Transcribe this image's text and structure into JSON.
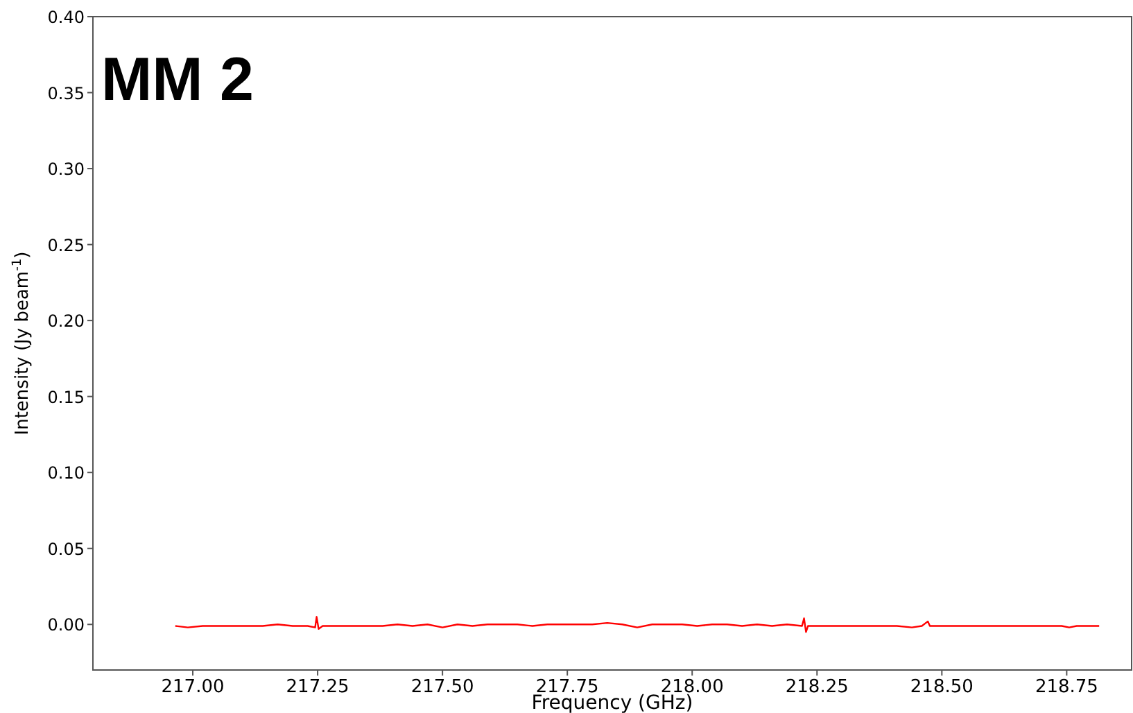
{
  "chart_data": {
    "type": "line",
    "title": "MM 2",
    "xlabel": "Frequency (GHz)",
    "ylabel": "Intensity (Jy beam$^{-1}$)",
    "xlim": [
      216.8,
      218.88
    ],
    "ylim": [
      -0.03,
      0.4
    ],
    "xticks": [
      {
        "value": 217,
        "label": "217.00"
      },
      {
        "value": 217.25,
        "label": "217.25"
      },
      {
        "value": 217.5,
        "label": "217.50"
      },
      {
        "value": 217.75,
        "label": "217.75"
      },
      {
        "value": 218,
        "label": "218.00"
      },
      {
        "value": 218.25,
        "label": "218.25"
      },
      {
        "value": 218.5,
        "label": "218.50"
      },
      {
        "value": 218.75,
        "label": "218.75"
      }
    ],
    "yticks": [
      {
        "value": 0,
        "label": "0.00"
      },
      {
        "value": 0.05,
        "label": "0.05"
      },
      {
        "value": 0.1,
        "label": "0.10"
      },
      {
        "value": 0.15,
        "label": "0.15"
      },
      {
        "value": 0.2,
        "label": "0.20"
      },
      {
        "value": 0.25,
        "label": "0.25"
      },
      {
        "value": 0.3,
        "label": "0.30"
      },
      {
        "value": 0.35,
        "label": "0.35"
      },
      {
        "value": 0.4,
        "label": "0.40"
      }
    ],
    "grid": false,
    "series": [
      {
        "color": "#ff0000",
        "x": [
          216.965,
          216.99,
          217.02,
          217.05,
          217.08,
          217.11,
          217.14,
          217.17,
          217.2,
          217.23,
          217.245,
          217.248,
          217.252,
          217.26,
          217.29,
          217.32,
          217.35,
          217.38,
          217.41,
          217.44,
          217.47,
          217.5,
          217.53,
          217.56,
          217.59,
          217.62,
          217.65,
          217.68,
          217.71,
          217.74,
          217.77,
          217.8,
          217.83,
          217.86,
          217.89,
          217.92,
          217.95,
          217.98,
          218.01,
          218.04,
          218.07,
          218.1,
          218.13,
          218.16,
          218.19,
          218.22,
          218.224,
          218.228,
          218.232,
          218.26,
          218.29,
          218.32,
          218.35,
          218.38,
          218.41,
          218.44,
          218.46,
          218.472,
          218.476,
          218.5,
          218.53,
          218.56,
          218.59,
          218.62,
          218.65,
          218.68,
          218.71,
          218.74,
          218.755,
          218.77,
          218.8,
          218.815
        ],
        "values": [
          -0.001,
          -0.002,
          -0.001,
          -0.001,
          -0.001,
          -0.001,
          -0.001,
          0,
          -0.001,
          -0.001,
          -0.002,
          0.005,
          -0.003,
          -0.001,
          -0.001,
          -0.001,
          -0.001,
          -0.001,
          0,
          -0.001,
          0,
          -0.002,
          0,
          -0.001,
          0,
          0,
          0,
          -0.001,
          0,
          0,
          0,
          0,
          0.001,
          0,
          -0.002,
          0,
          0,
          0,
          -0.001,
          0,
          0,
          -0.001,
          0,
          -0.001,
          0,
          -0.001,
          0.004,
          -0.005,
          -0.001,
          -0.001,
          -0.001,
          -0.001,
          -0.001,
          -0.001,
          -0.001,
          -0.002,
          -0.001,
          0.002,
          -0.001,
          -0.001,
          -0.001,
          -0.001,
          -0.001,
          -0.001,
          -0.001,
          -0.001,
          -0.001,
          -0.001,
          -0.002,
          -0.001,
          -0.001,
          -0.001
        ]
      }
    ]
  }
}
